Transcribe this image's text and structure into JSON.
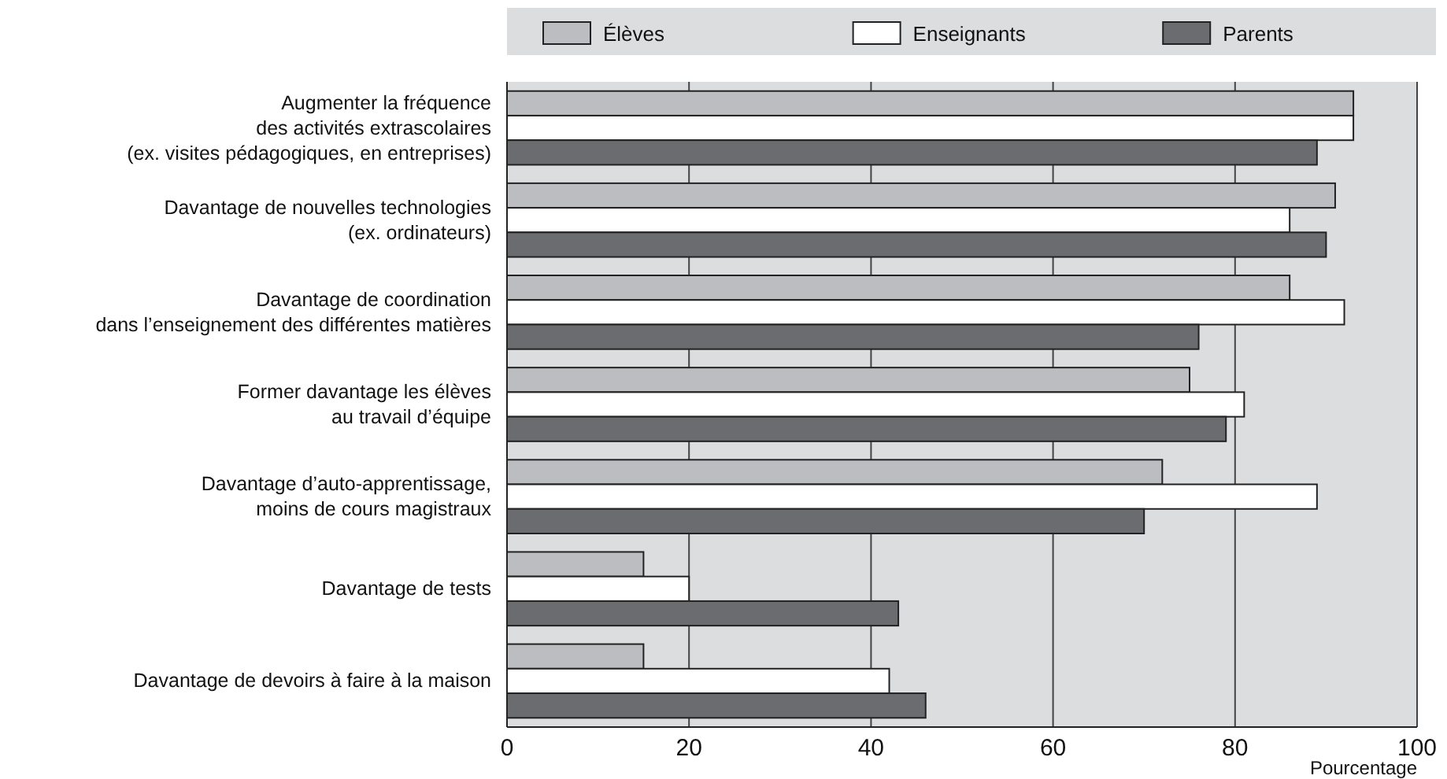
{
  "chart_data": {
    "type": "bar",
    "orientation": "horizontal",
    "xlabel": "Pourcentage",
    "categories": [
      "Augmenter la fréquence\ndes activités extrascolaires\n(ex. visites pédagogiques, en entreprises)",
      "Davantage de nouvelles technologies\n(ex. ordinateurs)",
      "Davantage de coordination\ndans l’enseignement des différentes matières",
      "Former davantage les élèves\nau travail d’équipe",
      "Davantage d’auto-apprentissage,\nmoins de cours magistraux",
      "Davantage de tests",
      "Davantage de devoirs à faire à la maison"
    ],
    "series": [
      {
        "name": "Élèves",
        "color": "#bcbdc1",
        "values": [
          93,
          91,
          86,
          75,
          72,
          15,
          15
        ]
      },
      {
        "name": "Enseignants",
        "color": "#ffffff",
        "values": [
          93,
          86,
          92,
          81,
          89,
          20,
          42
        ]
      },
      {
        "name": "Parents",
        "color": "#6b6c70",
        "values": [
          89,
          90,
          76,
          79,
          70,
          43,
          46
        ]
      }
    ],
    "xlim": [
      0,
      100
    ],
    "xticks": [
      0,
      20,
      40,
      60,
      80,
      100
    ],
    "grid": "x",
    "legend": "top"
  }
}
